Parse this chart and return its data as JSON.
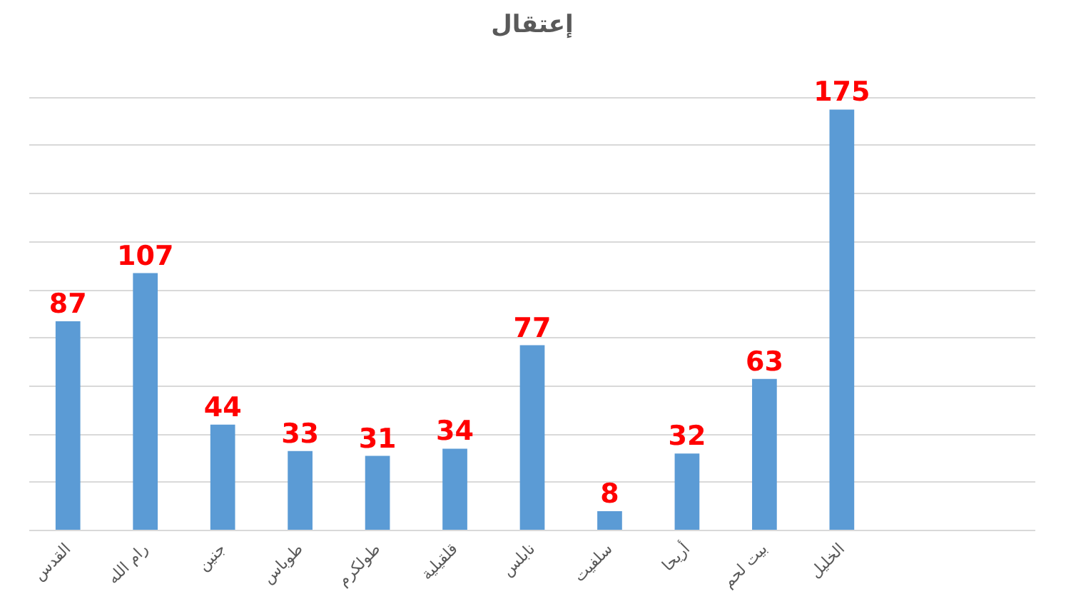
{
  "chart_data": {
    "type": "bar",
    "title": "إعتقال",
    "categories": [
      "القدس",
      "رام الله",
      "جنين",
      "طوباس",
      "طولكرم",
      "قلقيلية",
      "نابلس",
      "سلفيت",
      "أريحا",
      "بيت لحم",
      "الخليل",
      null,
      null
    ],
    "values": [
      87,
      107,
      44,
      33,
      31,
      34,
      77,
      8,
      32,
      63,
      175,
      null,
      null
    ],
    "color": "#5b9bd5",
    "data_labels": true,
    "yticks": [
      {
        "value": 0,
        "label": null
      },
      {
        "value": 20,
        "label": null
      },
      {
        "value": 40,
        "label": null
      },
      {
        "value": 60,
        "label": null
      },
      {
        "value": 80,
        "label": null
      },
      {
        "value": 100,
        "label": null
      },
      {
        "value": 120,
        "label": null
      },
      {
        "value": 140,
        "label": null
      },
      {
        "value": 160,
        "label": null
      },
      {
        "value": 180,
        "label": null
      }
    ],
    "grid": "y",
    "tick_labels": "x"
  }
}
